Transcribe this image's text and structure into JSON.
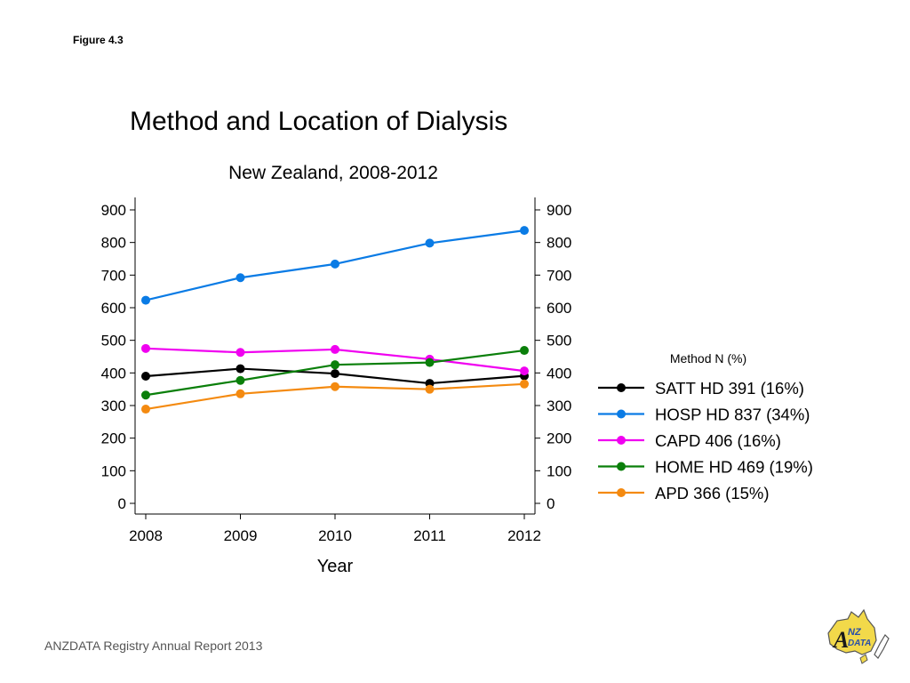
{
  "figure_label": "Figure 4.3",
  "footer_text": "ANZDATA Registry Annual Report 2013",
  "logo": {
    "line1": "NZ",
    "line2": "DATA",
    "letter": "A"
  },
  "chart_data": {
    "type": "line",
    "title": "Method and Location of Dialysis",
    "subtitle": "New Zealand, 2008-2012",
    "xlabel": "Year",
    "ylabel": "",
    "x": [
      2008,
      2009,
      2010,
      2011,
      2012
    ],
    "xlim": [
      2008,
      2012
    ],
    "ylim": [
      0,
      900
    ],
    "yticks": [
      0,
      100,
      200,
      300,
      400,
      500,
      600,
      700,
      800,
      900
    ],
    "grid": false,
    "right_axis": true,
    "legend_title": "Method N (%)",
    "legend_position": "right",
    "series": [
      {
        "name": "SATT HD 391 (16%)",
        "color": "#000000",
        "values": [
          390,
          413,
          398,
          368,
          391
        ]
      },
      {
        "name": "HOSP HD 837 (34%)",
        "color": "#0a7be5",
        "values": [
          623,
          692,
          734,
          798,
          837
        ]
      },
      {
        "name": "CAPD 406 (16%)",
        "color": "#f000f0",
        "values": [
          475,
          463,
          472,
          442,
          406
        ]
      },
      {
        "name": "HOME HD 469 (19%)",
        "color": "#0a7f0a",
        "values": [
          332,
          377,
          425,
          432,
          469
        ]
      },
      {
        "name": "APD 366 (15%)",
        "color": "#f48a10",
        "values": [
          289,
          336,
          358,
          350,
          366
        ]
      }
    ]
  }
}
